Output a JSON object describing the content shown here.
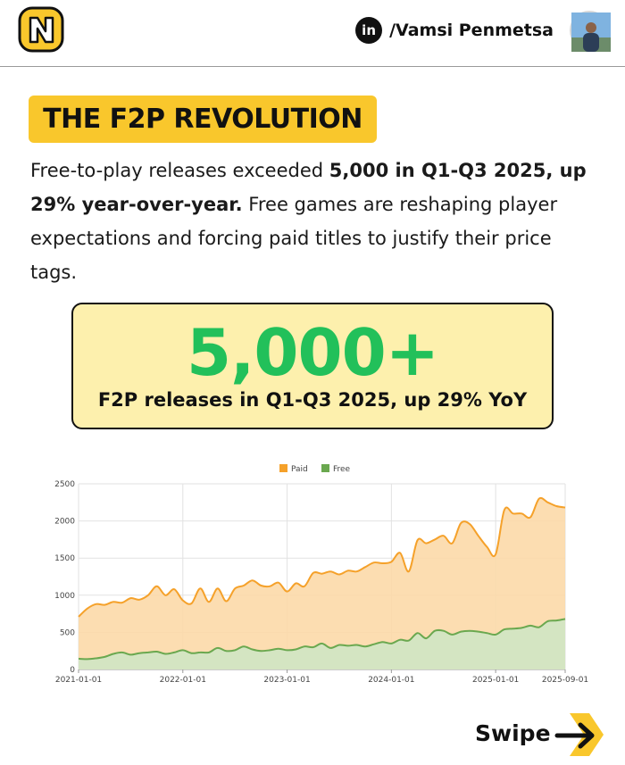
{
  "header": {
    "logo_icon": "yellow-n-logo",
    "linkedin_icon": "linkedin-icon",
    "linkedin_glyph": "in",
    "author_handle": "/Vamsi Penmetsa"
  },
  "title": "THE F2P REVOLUTION",
  "intro": {
    "p1": "Free-to-play releases exceeded ",
    "bold1": "5,000 in Q1-Q3 2025, up 29% year-over-year.",
    "p2": " Free games are reshaping player expectations and forcing paid titles to justify their price tags."
  },
  "stat": {
    "number": "5,000+",
    "caption": "F2P releases in Q1-Q3 2025, up 29% YoY"
  },
  "colors": {
    "accent_yellow": "#f9c72c",
    "stat_bg": "#fdf0ad",
    "stat_green": "#22c05a",
    "paid_line": "#f5a12a",
    "paid_fill": "#fcd9a8",
    "free_line": "#6aa84f",
    "free_fill": "#cfe6c4"
  },
  "chart_data": {
    "type": "area",
    "legend_position": "top-center",
    "grid": true,
    "ylim": [
      0,
      2500
    ],
    "yticks": [
      "0",
      "500",
      "1000",
      "1500",
      "2000",
      "2500"
    ],
    "xticks": [
      "2021-01-01",
      "2022-01-01",
      "2023-01-01",
      "2024-01-01",
      "2025-01-01",
      "2025-09-01"
    ],
    "x": [
      "2021-01",
      "2021-02",
      "2021-03",
      "2021-04",
      "2021-05",
      "2021-06",
      "2021-07",
      "2021-08",
      "2021-09",
      "2021-10",
      "2021-11",
      "2021-12",
      "2022-01",
      "2022-02",
      "2022-03",
      "2022-04",
      "2022-05",
      "2022-06",
      "2022-07",
      "2022-08",
      "2022-09",
      "2022-10",
      "2022-11",
      "2022-12",
      "2023-01",
      "2023-02",
      "2023-03",
      "2023-04",
      "2023-05",
      "2023-06",
      "2023-07",
      "2023-08",
      "2023-09",
      "2023-10",
      "2023-11",
      "2023-12",
      "2024-01",
      "2024-02",
      "2024-03",
      "2024-04",
      "2024-05",
      "2024-06",
      "2024-07",
      "2024-08",
      "2024-09",
      "2024-10",
      "2024-11",
      "2024-12",
      "2025-01",
      "2025-02",
      "2025-03",
      "2025-04",
      "2025-05",
      "2025-06",
      "2025-07",
      "2025-08",
      "2025-09"
    ],
    "series": [
      {
        "name": "Paid",
        "values": [
          710,
          820,
          880,
          870,
          910,
          900,
          960,
          940,
          1000,
          1120,
          1000,
          1080,
          930,
          890,
          1090,
          910,
          1090,
          920,
          1090,
          1130,
          1200,
          1130,
          1120,
          1170,
          1050,
          1160,
          1120,
          1300,
          1290,
          1320,
          1280,
          1330,
          1320,
          1380,
          1440,
          1430,
          1450,
          1570,
          1320,
          1740,
          1700,
          1750,
          1800,
          1700,
          1970,
          1960,
          1800,
          1650,
          1550,
          2150,
          2100,
          2100,
          2050,
          2300,
          2250,
          2200,
          2180
        ]
      },
      {
        "name": "Free",
        "values": [
          145,
          140,
          150,
          170,
          210,
          230,
          200,
          220,
          230,
          240,
          210,
          230,
          260,
          220,
          230,
          230,
          290,
          250,
          260,
          310,
          270,
          250,
          260,
          280,
          260,
          270,
          310,
          300,
          350,
          290,
          330,
          320,
          330,
          310,
          340,
          370,
          350,
          400,
          390,
          490,
          420,
          520,
          520,
          470,
          510,
          520,
          510,
          490,
          470,
          540,
          550,
          560,
          590,
          570,
          650,
          660,
          680
        ]
      }
    ]
  },
  "swipe": {
    "label": "Swipe",
    "arrow_icon": "arrow-right-icon"
  }
}
